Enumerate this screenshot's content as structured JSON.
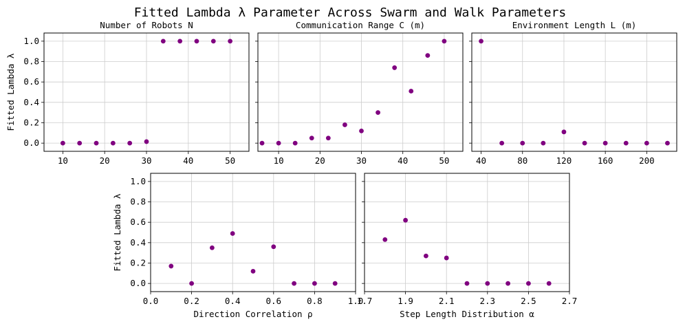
{
  "figure": {
    "title": "Fitted Lambda λ Parameter Across Swarm and Walk Parameters",
    "marker_color": "#800080"
  },
  "chart_data": [
    {
      "type": "scatter",
      "title": "Number of Robots N",
      "xlabel": "",
      "ylabel": "Fitted Lambda λ",
      "xlim": [
        5.5,
        54.5
      ],
      "ylim": [
        -0.08,
        1.08
      ],
      "xticks": [
        10,
        20,
        30,
        40,
        50
      ],
      "yticks": [
        0.0,
        0.2,
        0.4,
        0.6,
        0.8,
        1.0
      ],
      "grid": true,
      "x": [
        10,
        14,
        18,
        22,
        26,
        30,
        34,
        38,
        42,
        46,
        50
      ],
      "y": [
        0.0,
        0.0,
        0.0,
        0.0,
        0.0,
        0.015,
        1.0,
        1.0,
        1.0,
        1.0,
        1.0
      ]
    },
    {
      "type": "scatter",
      "title": "Communication Range C (m)",
      "xlabel": "",
      "ylabel": "",
      "xlim": [
        5.0,
        54.5
      ],
      "ylim": [
        -0.08,
        1.08
      ],
      "xticks": [
        10,
        20,
        30,
        40,
        50
      ],
      "yticks": [
        0.0,
        0.2,
        0.4,
        0.6,
        0.8,
        1.0
      ],
      "grid": true,
      "x": [
        6,
        10,
        14,
        18,
        22,
        26,
        30,
        34,
        38,
        42,
        46,
        50
      ],
      "y": [
        0.0,
        0.0,
        0.0,
        0.05,
        0.05,
        0.18,
        0.12,
        0.3,
        0.74,
        0.51,
        0.86,
        1.0
      ]
    },
    {
      "type": "scatter",
      "title": "Environment Length L (m)",
      "xlabel": "",
      "ylabel": "",
      "xlim": [
        31,
        229
      ],
      "ylim": [
        -0.08,
        1.08
      ],
      "xticks": [
        40,
        80,
        120,
        160,
        200
      ],
      "yticks": [
        0.0,
        0.2,
        0.4,
        0.6,
        0.8,
        1.0
      ],
      "grid": true,
      "x": [
        40,
        60,
        80,
        100,
        120,
        140,
        160,
        180,
        200,
        220
      ],
      "y": [
        1.0,
        0.0,
        0.0,
        0.0,
        0.11,
        0.0,
        0.0,
        0.0,
        0.0,
        0.0
      ]
    },
    {
      "type": "scatter",
      "title": "",
      "xlabel": "Direction Correlation ρ",
      "ylabel": "Fitted Lambda λ",
      "xlim": [
        0.0,
        1.0
      ],
      "ylim": [
        -0.08,
        1.08
      ],
      "xticks": [
        0.0,
        0.2,
        0.4,
        0.6,
        0.8,
        1.0
      ],
      "yticks": [
        0.0,
        0.2,
        0.4,
        0.6,
        0.8,
        1.0
      ],
      "grid": true,
      "x": [
        0.1,
        0.2,
        0.3,
        0.4,
        0.5,
        0.6,
        0.7,
        0.8,
        0.9
      ],
      "y": [
        0.17,
        0.0,
        0.35,
        0.49,
        0.12,
        0.36,
        0.0,
        0.0,
        0.0
      ]
    },
    {
      "type": "scatter",
      "title": "",
      "xlabel": "Step Length Distribution α",
      "ylabel": "",
      "xlim": [
        1.7,
        2.7
      ],
      "ylim": [
        -0.08,
        1.08
      ],
      "xticks": [
        1.7,
        1.9,
        2.1,
        2.3,
        2.5,
        2.7
      ],
      "yticks": [
        0.0,
        0.2,
        0.4,
        0.6,
        0.8,
        1.0
      ],
      "grid": true,
      "x": [
        1.8,
        1.9,
        2.0,
        2.1,
        2.2,
        2.3,
        2.4,
        2.5,
        2.6
      ],
      "y": [
        0.43,
        0.62,
        0.27,
        0.25,
        0.0,
        0.0,
        0.0,
        0.0,
        0.0
      ]
    }
  ]
}
